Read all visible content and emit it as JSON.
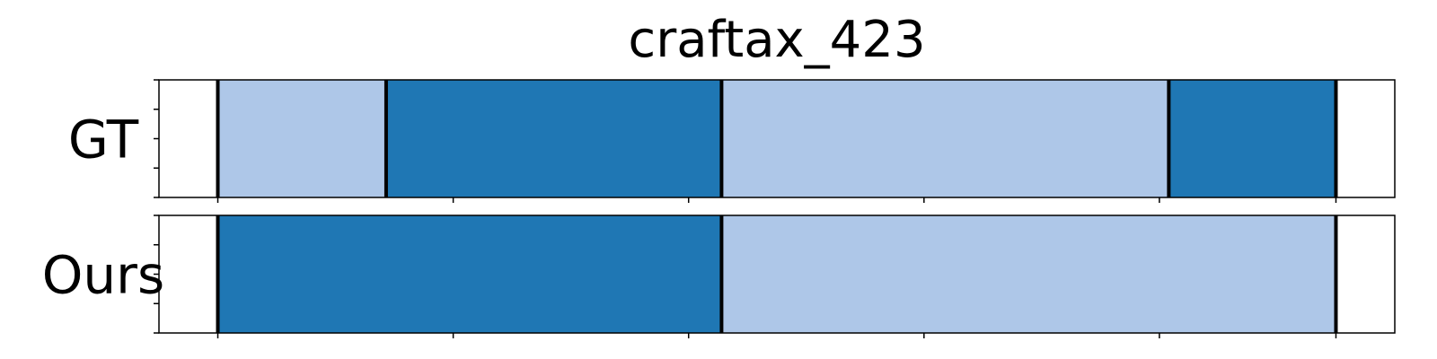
{
  "chart_data": {
    "type": "bar",
    "title": "craftax_423",
    "xlabel": "",
    "ylabel": "",
    "xlim": [
      0,
      105
    ],
    "x_ticks": [
      5,
      25,
      45,
      65,
      85,
      100
    ],
    "grid": false,
    "legend": "none",
    "colors": {
      "dark": "#1f77b4",
      "light": "#aec7e8",
      "boundary": "#000000",
      "frame": "#000000"
    },
    "rows": [
      {
        "label": "GT",
        "segments": [
          {
            "start": 5,
            "end": 19.3,
            "color": "light"
          },
          {
            "start": 19.3,
            "end": 47.8,
            "color": "dark"
          },
          {
            "start": 47.8,
            "end": 85.8,
            "color": "light"
          },
          {
            "start": 85.8,
            "end": 100,
            "color": "dark"
          }
        ],
        "boundaries": [
          5,
          19.3,
          47.8,
          85.8,
          100
        ]
      },
      {
        "label": "Ours",
        "segments": [
          {
            "start": 5,
            "end": 47.8,
            "color": "dark"
          },
          {
            "start": 47.8,
            "end": 100,
            "color": "light"
          }
        ],
        "boundaries": [
          5,
          47.8,
          100
        ]
      }
    ]
  }
}
